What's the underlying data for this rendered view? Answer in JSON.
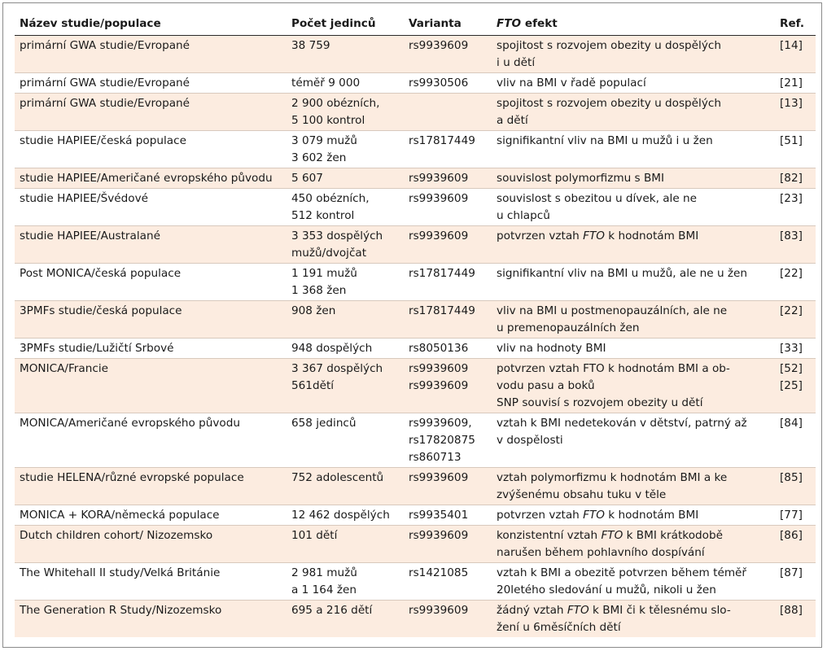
{
  "headers": {
    "study": "Název studie/populace",
    "count": "Počet jedinců",
    "variant": "Varianta",
    "effect_em": "FTO",
    "effect_rest": " efekt",
    "ref": "Ref."
  },
  "rows": [
    {
      "study": "primární GWA studie/Evropané",
      "count": "38 759",
      "variant": "rs9939609",
      "effect": [
        "spojitost s rozvojem obezity u dospělých\ni u dětí"
      ],
      "ref": "[14]"
    },
    {
      "study": "primární GWA studie/Evropané",
      "count": "téměř 9 000",
      "variant": "rs9930506",
      "effect": [
        "vliv na BMI v řadě populací"
      ],
      "ref": "[21]"
    },
    {
      "study": "primární GWA studie/Evropané",
      "count": "2 900 obézních,\n5 100 kontrol",
      "variant": "",
      "effect": [
        "spojitost s rozvojem obezity u dospělých\na dětí"
      ],
      "ref": "[13]"
    },
    {
      "study": "studie HAPIEE/česká populace",
      "count": "3 079 mužů\n3 602 žen",
      "variant": "rs17817449",
      "effect": [
        "signifikantní vliv na BMI u mužů i u žen"
      ],
      "ref": "[51]"
    },
    {
      "study": "studie HAPIEE/Američané evropského původu",
      "count": "5 607",
      "variant": "rs9939609",
      "effect": [
        "souvislost polymorfizmu s BMI"
      ],
      "ref": "[82]"
    },
    {
      "study": "studie HAPIEE/Švédové",
      "count": "450 obézních,\n512 kontrol",
      "variant": "rs9939609",
      "effect": [
        "souvislost s obezitou u dívek, ale ne\nu chlapců"
      ],
      "ref": "[23]"
    },
    {
      "study": "studie HAPIEE/Australané",
      "count": "3 353 dospělých\nmužů/dvojčat",
      "variant": "rs9939609",
      "effect": [
        "potvrzen vztah ",
        {
          "em": "FTO"
        },
        " k hodnotám BMI"
      ],
      "ref": "[83]"
    },
    {
      "study": "Post MONICA/česká populace",
      "count": "1 191 mužů\n1 368 žen",
      "variant": "rs17817449",
      "effect": [
        "signifikantní vliv na BMI u mužů, ale ne u žen"
      ],
      "ref": "[22]"
    },
    {
      "study": "3PMFs studie/česká populace",
      "count": "908 žen",
      "variant": "rs17817449",
      "effect": [
        "vliv na BMI u postmenopauzálních, ale ne\nu premenopauzálních žen"
      ],
      "ref": "[22]"
    },
    {
      "study": "3PMFs studie/Lužičtí Srbové",
      "count": "948 dospělých",
      "variant": "rs8050136",
      "effect": [
        "vliv na hodnoty BMI"
      ],
      "ref": "[33]"
    },
    {
      "study": "MONICA/Francie",
      "count": "3 367 dospělých\n561dětí",
      "variant": "rs9939609\nrs9939609",
      "effect": [
        "potvrzen vztah FTO k hodnotám BMI a ob-\nvodu pasu a boků\nSNP souvisí s rozvojem obezity u dětí"
      ],
      "ref": "[52]\n[25]"
    },
    {
      "study": "MONICA/Američané evropského původu",
      "count": "658 jedinců",
      "variant": "rs9939609,\nrs17820875\nrs860713",
      "effect": [
        "vztah k BMI nedetekován v dětství, patrný až\nv dospělosti"
      ],
      "ref": "[84]"
    },
    {
      "study": "studie HELENA/různé evropské populace",
      "count": "752 adolescentů",
      "variant": "rs9939609",
      "effect": [
        "vztah polymorfizmu k hodnotám BMI a ke\nzvýšenému obsahu tuku v těle"
      ],
      "ref": "[85]"
    },
    {
      "study": "MONICA + KORA/německá populace",
      "count": "12 462 dospělých",
      "variant": "rs9935401",
      "effect": [
        "potvrzen vztah ",
        {
          "em": "FTO"
        },
        " k hodnotám BMI"
      ],
      "ref": "[77]"
    },
    {
      "study": "Dutch children cohort/ Nizozemsko",
      "count": "101 dětí",
      "variant": "rs9939609",
      "effect": [
        "konzistentní vztah ",
        {
          "em": "FTO"
        },
        " k BMI krátkodobě\nnarušen během pohlavního dospívání"
      ],
      "ref": "[86]"
    },
    {
      "study": "The Whitehall II study/Velká Británie",
      "count": "2 981 mužů\na 1 164 žen",
      "variant": "rs1421085",
      "effect": [
        "vztah k BMI a obezitě potvrzen během téměř\n20letého sledování u mužů, nikoli u žen"
      ],
      "ref": "[87]"
    },
    {
      "study": "The Generation R Study/Nizozemsko",
      "count": "695 a 216 dětí",
      "variant": "rs9939609",
      "effect": [
        "žádný vztah ",
        {
          "em": "FTO"
        },
        " k BMI či k tělesnému slo-\nžení u 6měsíčních dětí"
      ],
      "ref": "[88]"
    }
  ],
  "style": {
    "shade_color": "#fcece0",
    "separator_color": "#d8c9bd"
  }
}
